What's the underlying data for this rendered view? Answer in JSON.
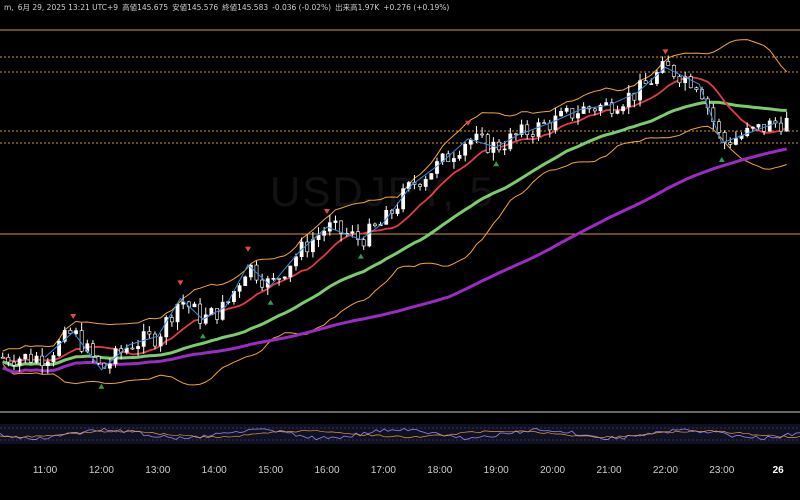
{
  "header": {
    "date": "6月 29, 2025 13:21 UTC+9",
    "open_prefix": "m,",
    "high": "高値145.675",
    "close_label": "安値145.576",
    "last": "終値145.583",
    "change": "-0.036 (-0.02%)",
    "volume": "出来高1.97K",
    "delta": "+0.276 (+0.19%)"
  },
  "watermark": "USDJPY, 5",
  "colors": {
    "bull": "#ffffff",
    "bear": "#000000",
    "ma_fast": "#e53946",
    "ma_mid": "#7ccc6e",
    "ma_slow": "#9c2bc4",
    "bollinger": "#f3a534",
    "zigzag": "#3d8de0",
    "hline": "#f0a830",
    "arrow_up": "#2e9e49",
    "arrow_down": "#e14a4a"
  },
  "chart_data": {
    "type": "candlestick",
    "x_labels": [
      "11:00",
      "12:00",
      "13:00",
      "14:00",
      "15:00",
      "16:00",
      "17:00",
      "18:00",
      "19:00",
      "20:00",
      "21:00",
      "22:00",
      "23:00",
      "26"
    ],
    "bold_label": "26",
    "trend": [
      {
        "t": 0,
        "v": 0.18
      },
      {
        "t": 0.5,
        "v": 0.3
      },
      {
        "t": 1,
        "v": 0.12
      },
      {
        "t": 1.5,
        "v": 0.24
      },
      {
        "t": 2,
        "v": 0.28
      },
      {
        "t": 2.4,
        "v": 0.46
      },
      {
        "t": 2.8,
        "v": 0.36
      },
      {
        "t": 3.2,
        "v": 0.42
      },
      {
        "t": 3.6,
        "v": 0.62
      },
      {
        "t": 4,
        "v": 0.52
      },
      {
        "t": 4.5,
        "v": 0.68
      },
      {
        "t": 5,
        "v": 0.8
      },
      {
        "t": 5.6,
        "v": 0.74
      },
      {
        "t": 6,
        "v": 0.82
      },
      {
        "t": 6.5,
        "v": 1.0
      },
      {
        "t": 7,
        "v": 1.1
      },
      {
        "t": 7.5,
        "v": 1.22
      },
      {
        "t": 8,
        "v": 1.18
      },
      {
        "t": 8.4,
        "v": 1.24
      },
      {
        "t": 9,
        "v": 1.3
      },
      {
        "t": 9.5,
        "v": 1.36
      },
      {
        "t": 10,
        "v": 1.38
      },
      {
        "t": 10.5,
        "v": 1.44
      },
      {
        "t": 11,
        "v": 1.56
      },
      {
        "t": 11.6,
        "v": 1.48
      },
      {
        "t": 12,
        "v": 1.2
      },
      {
        "t": 12.6,
        "v": 1.26
      },
      {
        "t": 13,
        "v": 1.3
      }
    ]
  }
}
